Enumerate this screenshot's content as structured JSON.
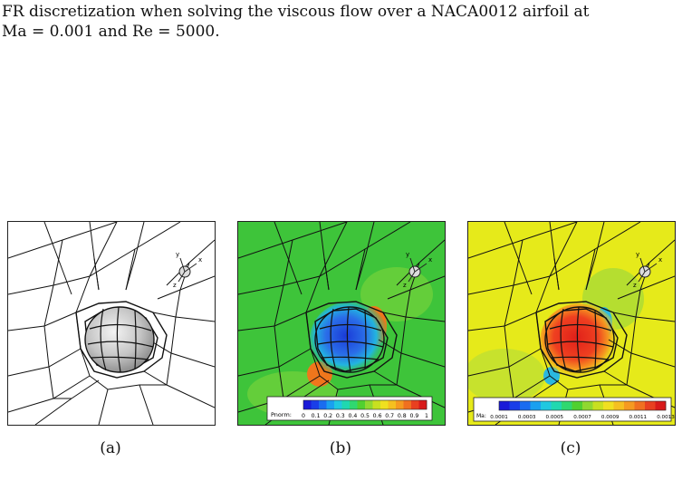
{
  "caption": {
    "line1": "FR discretization when solving the viscous flow over a NACA0012 airfoil at",
    "line2": "Ma = 0.001 and Re = 5000."
  },
  "panels": [
    {
      "label": "(a)"
    },
    {
      "label": "(b)",
      "colorbar": {
        "title": "Pnorm:",
        "ticks": [
          "0",
          "0.1",
          "0.2",
          "0.3",
          "0.4",
          "0.5",
          "0.6",
          "0.7",
          "0.8",
          "0.9",
          "1"
        ]
      }
    },
    {
      "label": "(c)",
      "colorbar": {
        "title": "Ma:",
        "ticks": [
          "0.0001",
          "0.0003",
          "0.0005",
          "0.0007",
          "0.0009",
          "0.0011",
          "0.0013"
        ]
      }
    }
  ],
  "axis_triad": {
    "x": "x",
    "y": "y",
    "z": "z"
  },
  "colors": {
    "pnorm_background": "#3ec43a",
    "ma_background": "#e6ea1a"
  }
}
